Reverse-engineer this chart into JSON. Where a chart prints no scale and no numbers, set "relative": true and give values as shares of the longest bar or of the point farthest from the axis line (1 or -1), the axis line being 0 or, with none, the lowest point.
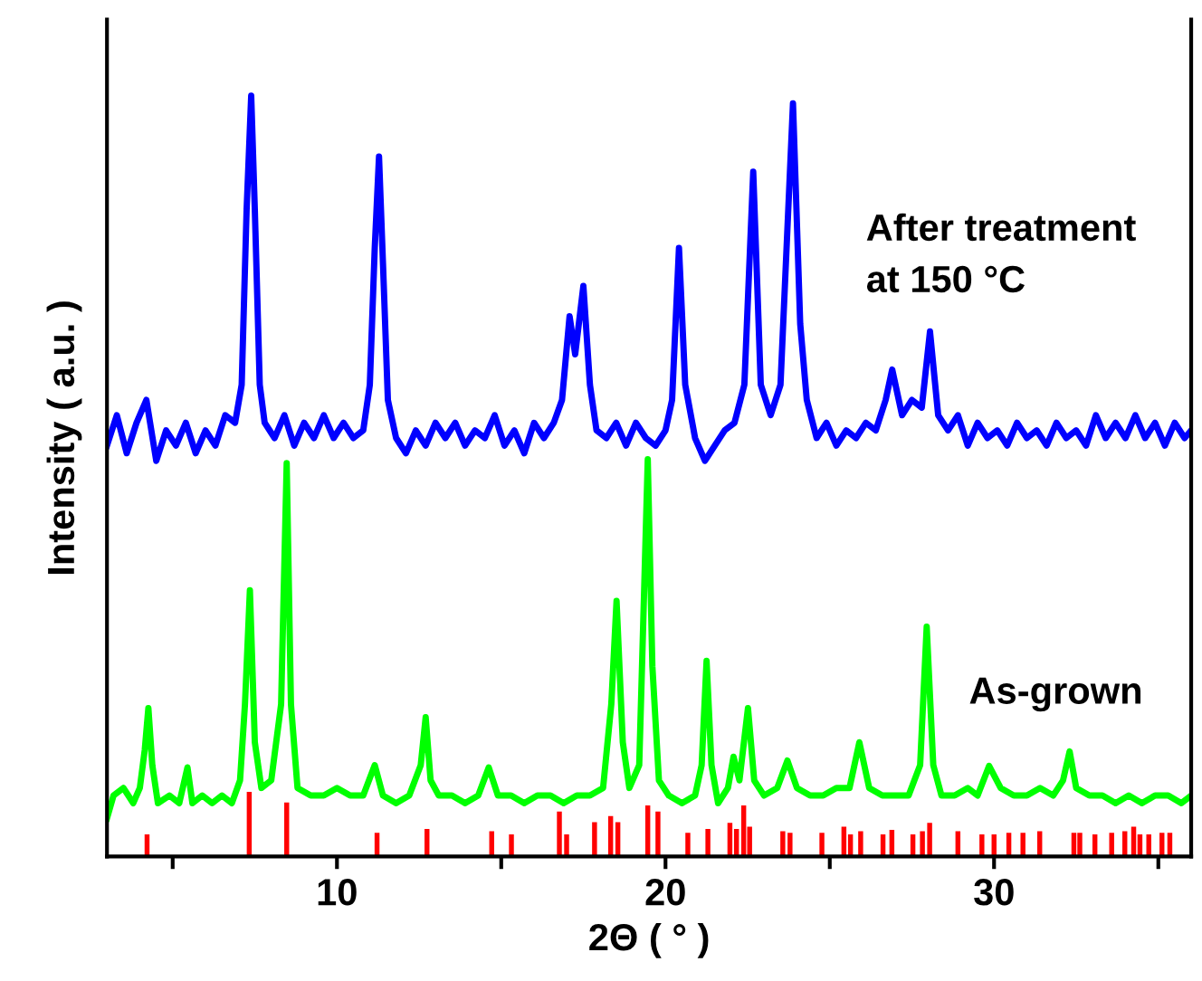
{
  "chart_data": {
    "type": "line",
    "relative": true,
    "xlabel": "2Θ ( ° )",
    "ylabel": "Intensity ( a.u. )",
    "xlim": [
      3,
      36
    ],
    "xticks": [
      {
        "value": 5,
        "label": null
      },
      10,
      {
        "value": 15,
        "label": null
      },
      20,
      {
        "value": 25,
        "label": null
      },
      30,
      {
        "value": 35,
        "label": null
      }
    ],
    "legend": false,
    "grid": false,
    "series": [
      {
        "name": "After treatment\nat 150 °C",
        "color": "#0000ff",
        "x": [
          3.0,
          3.3,
          3.6,
          3.9,
          4.2,
          4.5,
          4.8,
          5.1,
          5.4,
          5.7,
          6.0,
          6.3,
          6.6,
          6.9,
          7.1,
          7.25,
          7.39,
          7.5,
          7.65,
          7.8,
          8.1,
          8.4,
          8.7,
          9.0,
          9.3,
          9.6,
          9.9,
          10.2,
          10.5,
          10.8,
          11.0,
          11.15,
          11.28,
          11.4,
          11.55,
          11.8,
          12.1,
          12.4,
          12.7,
          13.0,
          13.3,
          13.6,
          13.9,
          14.2,
          14.5,
          14.8,
          15.1,
          15.4,
          15.7,
          16.0,
          16.3,
          16.6,
          16.85,
          17.08,
          17.25,
          17.5,
          17.7,
          17.9,
          18.2,
          18.5,
          18.8,
          19.1,
          19.4,
          19.7,
          20.0,
          20.2,
          20.41,
          20.6,
          20.9,
          21.2,
          21.5,
          21.8,
          22.1,
          22.4,
          22.67,
          22.9,
          23.2,
          23.5,
          23.88,
          24.1,
          24.3,
          24.6,
          24.9,
          25.2,
          25.5,
          25.8,
          26.1,
          26.4,
          26.7,
          26.9,
          27.2,
          27.5,
          27.8,
          28.05,
          28.3,
          28.6,
          28.9,
          29.2,
          29.5,
          29.8,
          30.1,
          30.4,
          30.7,
          31.0,
          31.3,
          31.6,
          31.9,
          32.2,
          32.5,
          32.8,
          33.1,
          33.4,
          33.7,
          34.0,
          34.3,
          34.6,
          34.9,
          35.2,
          35.5,
          35.8,
          36.0
        ],
        "values": [
          0.54,
          0.58,
          0.53,
          0.57,
          0.6,
          0.52,
          0.56,
          0.54,
          0.57,
          0.53,
          0.56,
          0.54,
          0.58,
          0.57,
          0.62,
          0.85,
          1.0,
          0.85,
          0.62,
          0.57,
          0.55,
          0.58,
          0.54,
          0.57,
          0.55,
          0.58,
          0.55,
          0.57,
          0.55,
          0.56,
          0.62,
          0.8,
          0.92,
          0.78,
          0.6,
          0.55,
          0.53,
          0.56,
          0.54,
          0.57,
          0.55,
          0.57,
          0.54,
          0.56,
          0.55,
          0.58,
          0.54,
          0.56,
          0.53,
          0.57,
          0.55,
          0.57,
          0.6,
          0.71,
          0.66,
          0.75,
          0.62,
          0.56,
          0.55,
          0.57,
          0.54,
          0.57,
          0.55,
          0.54,
          0.56,
          0.6,
          0.8,
          0.62,
          0.55,
          0.52,
          0.54,
          0.56,
          0.57,
          0.62,
          0.9,
          0.62,
          0.58,
          0.62,
          0.99,
          0.7,
          0.6,
          0.55,
          0.57,
          0.54,
          0.56,
          0.55,
          0.57,
          0.56,
          0.6,
          0.64,
          0.58,
          0.6,
          0.59,
          0.69,
          0.58,
          0.56,
          0.58,
          0.54,
          0.57,
          0.55,
          0.56,
          0.54,
          0.57,
          0.55,
          0.56,
          0.54,
          0.57,
          0.55,
          0.56,
          0.54,
          0.58,
          0.55,
          0.57,
          0.55,
          0.58,
          0.55,
          0.57,
          0.54,
          0.57,
          0.55,
          0.56
        ]
      },
      {
        "name": "As-grown",
        "color": "#00ff00",
        "x": [
          3.0,
          3.2,
          3.5,
          3.8,
          4.0,
          4.15,
          4.26,
          4.38,
          4.55,
          4.9,
          5.2,
          5.45,
          5.6,
          5.9,
          6.2,
          6.5,
          6.8,
          7.05,
          7.2,
          7.35,
          7.5,
          7.7,
          8.0,
          8.3,
          8.47,
          8.6,
          8.8,
          9.2,
          9.6,
          10.0,
          10.4,
          10.8,
          11.15,
          11.4,
          11.8,
          12.2,
          12.55,
          12.7,
          12.85,
          13.1,
          13.5,
          13.9,
          14.3,
          14.62,
          14.9,
          15.3,
          15.7,
          16.1,
          16.5,
          16.9,
          17.3,
          17.7,
          18.1,
          18.35,
          18.51,
          18.7,
          18.9,
          19.2,
          19.35,
          19.46,
          19.6,
          19.8,
          20.1,
          20.5,
          20.9,
          21.1,
          21.25,
          21.4,
          21.6,
          21.9,
          22.07,
          22.25,
          22.51,
          22.7,
          23.0,
          23.4,
          23.71,
          24.0,
          24.4,
          24.8,
          25.2,
          25.6,
          25.9,
          26.2,
          26.6,
          27.0,
          27.4,
          27.75,
          27.95,
          28.15,
          28.4,
          28.8,
          29.2,
          29.5,
          29.85,
          30.2,
          30.6,
          31.0,
          31.4,
          31.8,
          32.1,
          32.3,
          32.5,
          32.9,
          33.3,
          33.7,
          34.1,
          34.5,
          34.9,
          35.3,
          35.7,
          36.0
        ],
        "values": [
          0.05,
          0.08,
          0.09,
          0.07,
          0.09,
          0.14,
          0.195,
          0.12,
          0.07,
          0.08,
          0.07,
          0.117,
          0.07,
          0.08,
          0.07,
          0.08,
          0.07,
          0.1,
          0.2,
          0.35,
          0.15,
          0.09,
          0.1,
          0.2,
          0.517,
          0.2,
          0.09,
          0.08,
          0.08,
          0.09,
          0.08,
          0.08,
          0.12,
          0.08,
          0.07,
          0.08,
          0.12,
          0.183,
          0.1,
          0.08,
          0.08,
          0.07,
          0.08,
          0.117,
          0.08,
          0.08,
          0.07,
          0.08,
          0.08,
          0.07,
          0.08,
          0.08,
          0.09,
          0.2,
          0.336,
          0.15,
          0.09,
          0.12,
          0.35,
          0.522,
          0.25,
          0.1,
          0.08,
          0.07,
          0.08,
          0.12,
          0.257,
          0.12,
          0.07,
          0.09,
          0.131,
          0.1,
          0.195,
          0.1,
          0.08,
          0.09,
          0.126,
          0.09,
          0.08,
          0.08,
          0.09,
          0.09,
          0.15,
          0.09,
          0.08,
          0.08,
          0.08,
          0.12,
          0.302,
          0.12,
          0.08,
          0.08,
          0.09,
          0.08,
          0.119,
          0.09,
          0.08,
          0.08,
          0.09,
          0.08,
          0.1,
          0.138,
          0.09,
          0.08,
          0.08,
          0.07,
          0.08,
          0.07,
          0.08,
          0.08,
          0.07,
          0.08
        ]
      },
      {
        "type": "bar",
        "color": "#ff0000",
        "x": [
          4.22,
          7.33,
          8.47,
          11.22,
          12.74,
          14.71,
          15.31,
          16.77,
          16.99,
          17.84,
          18.33,
          18.55,
          19.46,
          19.77,
          20.68,
          21.29,
          21.96,
          22.16,
          22.38,
          22.56,
          23.57,
          23.79,
          24.76,
          25.43,
          25.63,
          25.94,
          26.62,
          26.89,
          27.53,
          27.82,
          28.04,
          28.9,
          29.63,
          30.0,
          30.45,
          30.88,
          31.39,
          32.43,
          32.61,
          33.07,
          33.58,
          33.98,
          34.25,
          34.44,
          34.71,
          35.11,
          35.35
        ],
        "values": [
          0.029,
          0.085,
          0.071,
          0.031,
          0.036,
          0.033,
          0.029,
          0.059,
          0.029,
          0.045,
          0.053,
          0.045,
          0.067,
          0.059,
          0.031,
          0.036,
          0.044,
          0.036,
          0.067,
          0.039,
          0.033,
          0.031,
          0.031,
          0.039,
          0.029,
          0.033,
          0.029,
          0.035,
          0.029,
          0.033,
          0.044,
          0.033,
          0.029,
          0.029,
          0.031,
          0.031,
          0.033,
          0.031,
          0.031,
          0.029,
          0.031,
          0.033,
          0.039,
          0.029,
          0.029,
          0.031,
          0.031
        ]
      }
    ]
  }
}
